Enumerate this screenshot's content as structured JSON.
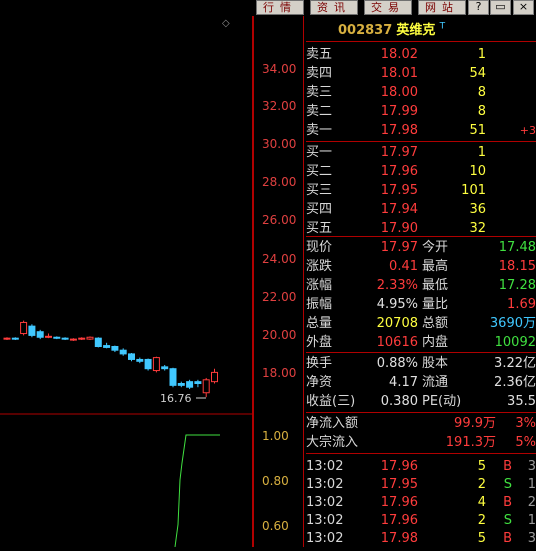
{
  "toolbar": {
    "tabs": [
      "行情",
      "资讯",
      "交易",
      "网站"
    ],
    "win_buttons": [
      "?",
      "▭",
      "×"
    ],
    "indicator": "◇"
  },
  "stock": {
    "code": "002837",
    "name": "英维克",
    "flag": "T"
  },
  "order_book": {
    "sell": [
      {
        "label": "卖五",
        "price": "18.02",
        "vol": "1"
      },
      {
        "label": "卖四",
        "price": "18.01",
        "vol": "54"
      },
      {
        "label": "卖三",
        "price": "18.00",
        "vol": "8"
      },
      {
        "label": "卖二",
        "price": "17.99",
        "vol": "8"
      },
      {
        "label": "卖一",
        "price": "17.98",
        "vol": "51",
        "extra": "+3"
      }
    ],
    "buy": [
      {
        "label": "买一",
        "price": "17.97",
        "vol": "1"
      },
      {
        "label": "买二",
        "price": "17.96",
        "vol": "10"
      },
      {
        "label": "买三",
        "price": "17.95",
        "vol": "101"
      },
      {
        "label": "买四",
        "price": "17.94",
        "vol": "36"
      },
      {
        "label": "买五",
        "price": "17.90",
        "vol": "32"
      }
    ]
  },
  "stats": [
    {
      "l1": "现价",
      "v1": "17.97",
      "l2": "今开",
      "v2": "17.48"
    },
    {
      "l1": "涨跌",
      "v1": "0.41",
      "l2": "最高",
      "v2": "18.15"
    },
    {
      "l1": "涨幅",
      "v1": "2.33%",
      "l2": "最低",
      "v2": "17.28"
    },
    {
      "l1": "振幅",
      "v1": "4.95%",
      "l2": "量比",
      "v2": "1.69"
    },
    {
      "l1": "总量",
      "v1": "20708",
      "l2": "总额",
      "v2": "3690万"
    },
    {
      "l1": "外盘",
      "v1": "10616",
      "l2": "内盘",
      "v2": "10092"
    }
  ],
  "stats2": [
    {
      "l1": "换手",
      "v1": "0.88%",
      "l2": "股本",
      "v2": "3.22亿"
    },
    {
      "l1": "净资",
      "v1": "4.17",
      "l2": "流通",
      "v2": "2.36亿"
    },
    {
      "l1": "收益(三)",
      "v1": "0.380",
      "l2": "PE(动)",
      "v2": "35.5"
    }
  ],
  "flows": [
    {
      "label": "净流入额",
      "value": "99.9万",
      "pct": "3%"
    },
    {
      "label": "大宗流入",
      "value": "191.3万",
      "pct": "5%"
    }
  ],
  "ticks": [
    {
      "time": "13:02",
      "price": "17.96",
      "vol": "5",
      "side": "B",
      "n": "3"
    },
    {
      "time": "13:02",
      "price": "17.95",
      "vol": "2",
      "side": "S",
      "n": "1"
    },
    {
      "time": "13:02",
      "price": "17.96",
      "vol": "4",
      "side": "B",
      "n": "2"
    },
    {
      "time": "13:02",
      "price": "17.96",
      "vol": "2",
      "side": "S",
      "n": "1"
    },
    {
      "time": "13:02",
      "price": "17.98",
      "vol": "5",
      "side": "B",
      "n": "3"
    }
  ],
  "price_axis": [
    "34.00",
    "32.00",
    "30.00",
    "28.00",
    "26.00",
    "24.00",
    "22.00",
    "20.00",
    "18.00"
  ],
  "lower_axis": [
    "1.00",
    "0.80",
    "0.60"
  ],
  "low_marker": "16.76",
  "colors": {
    "up": "#ff3c3c",
    "down": "#40c8ff",
    "grid": "#b00000",
    "axis": "#e04040",
    "line": "#40e040"
  },
  "chart_data": {
    "type": "candlestick",
    "y_range": [
      16,
      35
    ],
    "candles": [
      {
        "o": 19.9,
        "c": 19.95,
        "h": 20.0,
        "l": 19.85
      },
      {
        "o": 19.95,
        "c": 19.9,
        "h": 20.0,
        "l": 19.85
      },
      {
        "o": 20.2,
        "c": 20.8,
        "h": 20.9,
        "l": 20.1
      },
      {
        "o": 20.6,
        "c": 20.1,
        "h": 20.7,
        "l": 20.0
      },
      {
        "o": 20.3,
        "c": 20.0,
        "h": 20.4,
        "l": 19.9
      },
      {
        "o": 20.0,
        "c": 20.05,
        "h": 20.2,
        "l": 19.95
      },
      {
        "o": 20.0,
        "c": 19.95,
        "h": 20.05,
        "l": 19.9
      },
      {
        "o": 19.95,
        "c": 19.9,
        "h": 20.0,
        "l": 19.85
      },
      {
        "o": 19.85,
        "c": 19.9,
        "h": 19.95,
        "l": 19.8
      },
      {
        "o": 19.9,
        "c": 19.95,
        "h": 20.0,
        "l": 19.85
      },
      {
        "o": 19.9,
        "c": 20.0,
        "h": 20.05,
        "l": 19.85
      },
      {
        "o": 19.95,
        "c": 19.5,
        "h": 20.0,
        "l": 19.45
      },
      {
        "o": 19.55,
        "c": 19.45,
        "h": 19.7,
        "l": 19.4
      },
      {
        "o": 19.5,
        "c": 19.3,
        "h": 19.55,
        "l": 19.2
      },
      {
        "o": 19.3,
        "c": 19.1,
        "h": 19.4,
        "l": 19.0
      },
      {
        "o": 19.1,
        "c": 18.8,
        "h": 19.15,
        "l": 18.7
      },
      {
        "o": 18.8,
        "c": 18.7,
        "h": 18.9,
        "l": 18.6
      },
      {
        "o": 18.8,
        "c": 18.3,
        "h": 18.85,
        "l": 18.2
      },
      {
        "o": 18.2,
        "c": 18.9,
        "h": 18.95,
        "l": 18.1
      },
      {
        "o": 18.4,
        "c": 18.3,
        "h": 18.5,
        "l": 18.2
      },
      {
        "o": 18.3,
        "c": 17.4,
        "h": 18.35,
        "l": 17.3
      },
      {
        "o": 17.5,
        "c": 17.4,
        "h": 17.6,
        "l": 17.3
      },
      {
        "o": 17.6,
        "c": 17.3,
        "h": 17.7,
        "l": 17.2
      },
      {
        "o": 17.6,
        "c": 17.5,
        "h": 17.7,
        "l": 17.3
      },
      {
        "o": 17.0,
        "c": 17.7,
        "h": 17.8,
        "l": 16.76
      },
      {
        "o": 17.6,
        "c": 18.1,
        "h": 18.3,
        "l": 17.5
      }
    ],
    "indicator_line": [
      0.0,
      0.2,
      0.6,
      0.75,
      1.0,
      1.0,
      1.0
    ]
  }
}
